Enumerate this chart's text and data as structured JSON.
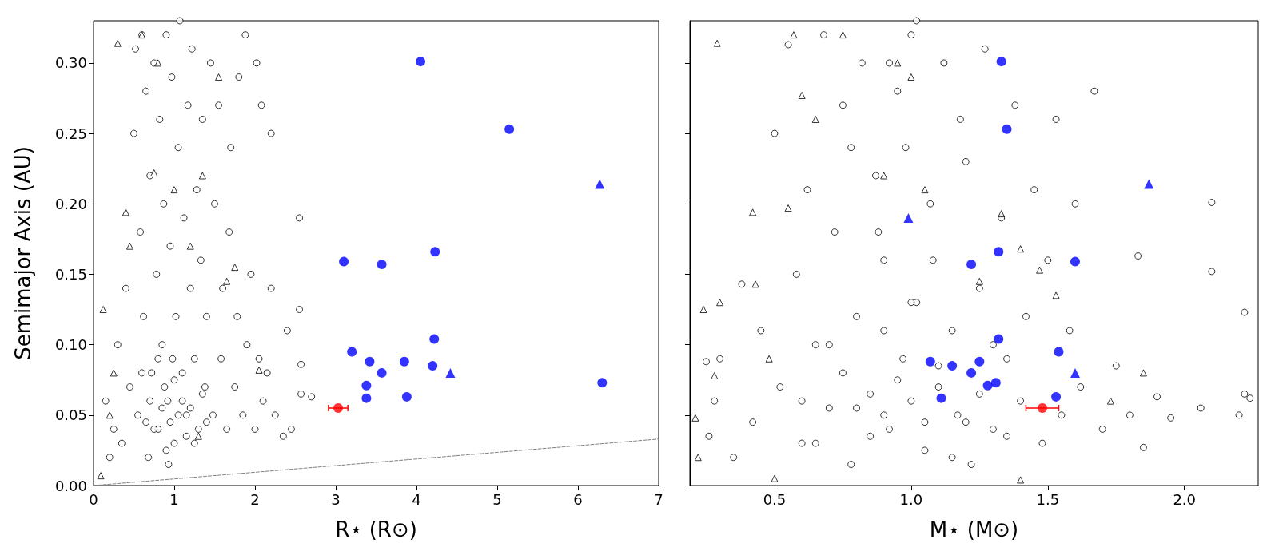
{
  "chart_data": [
    {
      "type": "scatter",
      "ylabel": "Semimajor Axis (AU)",
      "xlabel": "R⋆ (R⊙)",
      "xlim": [
        0,
        7
      ],
      "xticks": [
        0,
        1,
        2,
        3,
        4,
        5,
        6,
        7
      ],
      "ylim": [
        0,
        0.33
      ],
      "yticks": [
        {
          "value": 0,
          "label": "0.00"
        },
        0.05,
        {
          "value": 0.1,
          "label": "0.10"
        },
        0.15,
        {
          "value": 0.2,
          "label": "0.20"
        },
        0.25,
        {
          "value": 0.3,
          "label": "0.30"
        }
      ],
      "grid": false,
      "series": [
        {
          "type": "line",
          "line_style": "dashed",
          "color": "#808080",
          "x": [
            0,
            7
          ],
          "values": [
            0,
            0.033
          ]
        },
        {
          "marker": "circle",
          "color": "#000000",
          "x": [
            0.15,
            0.2,
            0.25,
            0.3,
            0.35,
            0.4,
            0.45,
            0.5,
            0.52,
            0.55,
            0.58,
            0.6,
            0.62,
            0.65,
            0.68,
            0.7,
            0.72,
            0.75,
            0.78,
            0.8,
            0.82,
            0.85,
            0.87,
            0.9,
            0.92,
            0.95,
            0.97,
            1.0,
            1.02,
            1.05,
            1.07,
            1.1,
            1.12,
            1.15,
            1.17,
            1.2,
            1.22,
            1.25,
            1.28,
            1.3,
            1.33,
            1.35,
            1.38,
            1.4,
            1.45,
            1.48,
            1.5,
            1.55,
            1.58,
            1.6,
            1.65,
            1.68,
            1.7,
            1.75,
            1.78,
            1.8,
            1.85,
            1.88,
            1.9,
            1.95,
            2.0,
            2.02,
            2.05,
            2.08,
            2.1,
            2.15,
            2.2,
            2.2,
            2.25,
            2.35,
            2.4,
            2.45,
            2.55,
            2.55,
            2.57,
            2.57,
            2.7,
            1.05,
            0.95,
            0.85,
            0.75,
            1.15,
            0.88,
            0.98,
            1.1,
            0.8,
            0.9,
            1.2,
            0.7,
            1.0,
            0.93,
            1.25,
            0.65,
            1.35,
            0.6,
            1.4
          ],
          "values": [
            0.06,
            0.02,
            0.04,
            0.1,
            0.03,
            0.14,
            0.07,
            0.25,
            0.31,
            0.05,
            0.18,
            0.32,
            0.12,
            0.28,
            0.02,
            0.22,
            0.08,
            0.3,
            0.15,
            0.04,
            0.26,
            0.1,
            0.2,
            0.32,
            0.06,
            0.17,
            0.29,
            0.03,
            0.12,
            0.24,
            0.33,
            0.08,
            0.19,
            0.05,
            0.27,
            0.14,
            0.31,
            0.09,
            0.21,
            0.04,
            0.16,
            0.26,
            0.07,
            0.12,
            0.3,
            0.05,
            0.2,
            0.27,
            0.09,
            0.14,
            0.04,
            0.18,
            0.24,
            0.07,
            0.12,
            0.29,
            0.05,
            0.32,
            0.1,
            0.15,
            0.04,
            0.3,
            0.09,
            0.27,
            0.06,
            0.08,
            0.25,
            0.14,
            0.05,
            0.035,
            0.11,
            0.04,
            0.19,
            0.125,
            0.086,
            0.065,
            0.063,
            0.05,
            0.045,
            0.055,
            0.04,
            0.035,
            0.07,
            0.09,
            0.06,
            0.09,
            0.025,
            0.055,
            0.06,
            0.075,
            0.015,
            0.03,
            0.045,
            0.065,
            0.08,
            0.045
          ]
        },
        {
          "marker": "triangle",
          "color": "#000000",
          "x": [
            0.09,
            0.12,
            0.2,
            0.3,
            0.4,
            0.45,
            0.6,
            0.75,
            1.0,
            1.2,
            1.35,
            1.55,
            1.65,
            1.75,
            1.3,
            0.25,
            2.05,
            0.8
          ],
          "values": [
            0.007,
            0.125,
            0.05,
            0.314,
            0.194,
            0.17,
            0.32,
            0.222,
            0.21,
            0.17,
            0.22,
            0.29,
            0.145,
            0.155,
            0.035,
            0.08,
            0.082,
            0.3
          ]
        },
        {
          "marker": "circle",
          "color": "#0000ff",
          "x": [
            4.05,
            5.15,
            3.1,
            3.57,
            4.23,
            3.2,
            3.42,
            3.57,
            3.85,
            4.22,
            4.2,
            3.38,
            3.38,
            3.88,
            6.3
          ],
          "values": [
            0.301,
            0.253,
            0.159,
            0.157,
            0.166,
            0.095,
            0.088,
            0.08,
            0.088,
            0.104,
            0.085,
            0.071,
            0.062,
            0.063,
            0.073
          ]
        },
        {
          "marker": "triangle",
          "color": "#0000ff",
          "x": [
            6.27,
            4.42
          ],
          "values": [
            0.214,
            0.08
          ]
        },
        {
          "marker": "circle",
          "color": "#ff0000",
          "x": [
            3.03
          ],
          "values": [
            0.055
          ],
          "xerrors": [
            0.12
          ]
        }
      ]
    },
    {
      "type": "scatter",
      "xlabel": "M⋆ (M⊙)",
      "xlim": [
        0.19,
        2.27
      ],
      "xticks": [
        0.5,
        {
          "value": 1,
          "label": "1.0"
        },
        1.5,
        {
          "value": 2,
          "label": "2.0"
        }
      ],
      "ylim": [
        0,
        0.33
      ],
      "yticks": [
        {
          "value": 0,
          "label": null
        },
        {
          "value": 0.05,
          "label": null
        },
        {
          "value": 0.1,
          "label": null
        },
        {
          "value": 0.15,
          "label": null
        },
        {
          "value": 0.2,
          "label": null
        },
        {
          "value": 0.25,
          "label": null
        },
        {
          "value": 0.3,
          "label": null
        }
      ],
      "tick_labels": "x",
      "grid": false,
      "series": [
        {
          "marker": "circle",
          "color": "#000000",
          "x": [
            0.25,
            0.26,
            0.28,
            0.3,
            0.35,
            0.38,
            0.42,
            0.45,
            0.5,
            0.52,
            0.55,
            0.58,
            0.6,
            0.62,
            0.65,
            0.68,
            0.7,
            0.72,
            0.75,
            0.78,
            0.8,
            0.82,
            0.85,
            0.87,
            0.9,
            0.92,
            0.95,
            0.97,
            1.0,
            1.02,
            1.05,
            1.07,
            1.1,
            1.12,
            1.15,
            1.17,
            1.2,
            1.22,
            1.25,
            1.27,
            1.3,
            1.33,
            1.35,
            1.38,
            1.4,
            1.42,
            1.45,
            1.48,
            1.5,
            1.53,
            1.55,
            1.58,
            1.6,
            1.62,
            1.67,
            1.7,
            1.75,
            1.8,
            1.83,
            1.85,
            1.9,
            1.95,
            2.06,
            2.1,
            2.1,
            2.2,
            2.22,
            2.22,
            2.24,
            0.9,
            1.0,
            0.95,
            1.05,
            0.85,
            1.1,
            0.8,
            1.15,
            0.75,
            1.2,
            0.7,
            1.25,
            0.65,
            1.3,
            0.6,
            1.35,
            0.9,
            1.0,
            0.88,
            1.08,
            0.98,
            1.18,
            0.78,
            0.92,
            1.02
          ],
          "values": [
            0.088,
            0.035,
            0.06,
            0.09,
            0.02,
            0.143,
            0.045,
            0.11,
            0.25,
            0.07,
            0.313,
            0.15,
            0.03,
            0.21,
            0.1,
            0.32,
            0.055,
            0.18,
            0.27,
            0.015,
            0.12,
            0.3,
            0.065,
            0.22,
            0.16,
            0.04,
            0.28,
            0.09,
            0.32,
            0.13,
            0.025,
            0.2,
            0.07,
            0.3,
            0.11,
            0.05,
            0.23,
            0.015,
            0.14,
            0.31,
            0.04,
            0.19,
            0.09,
            0.27,
            0.06,
            0.12,
            0.21,
            0.03,
            0.16,
            0.26,
            0.05,
            0.11,
            0.2,
            0.07,
            0.28,
            0.04,
            0.085,
            0.05,
            0.163,
            0.027,
            0.063,
            0.048,
            0.055,
            0.152,
            0.201,
            0.05,
            0.123,
            0.065,
            0.062,
            0.05,
            0.06,
            0.075,
            0.045,
            0.035,
            0.085,
            0.055,
            0.02,
            0.08,
            0.045,
            0.1,
            0.065,
            0.03,
            0.1,
            0.06,
            0.035,
            0.11,
            0.13,
            0.18,
            0.16,
            0.24,
            0.26,
            0.24,
            0.3,
            0.33
          ]
        },
        {
          "marker": "triangle",
          "color": "#000000",
          "x": [
            0.21,
            0.22,
            0.24,
            0.29,
            0.3,
            0.42,
            0.43,
            0.55,
            0.57,
            0.6,
            0.65,
            0.75,
            0.9,
            0.95,
            1.0,
            1.05,
            1.25,
            1.33,
            1.4,
            1.47,
            1.53,
            1.73,
            1.85,
            1.4,
            0.5,
            0.48,
            0.28
          ],
          "values": [
            0.048,
            0.02,
            0.125,
            0.314,
            0.13,
            0.194,
            0.143,
            0.197,
            0.32,
            0.277,
            0.26,
            0.32,
            0.22,
            0.3,
            0.29,
            0.21,
            0.145,
            0.193,
            0.168,
            0.153,
            0.135,
            0.06,
            0.08,
            0.004,
            0.005,
            0.09,
            0.078
          ]
        },
        {
          "marker": "circle",
          "color": "#0000ff",
          "x": [
            1.33,
            1.35,
            1.32,
            1.22,
            1.6,
            1.32,
            1.07,
            1.15,
            1.22,
            1.25,
            1.54,
            1.28,
            1.31,
            1.11,
            1.53
          ],
          "values": [
            0.301,
            0.253,
            0.166,
            0.157,
            0.159,
            0.104,
            0.088,
            0.085,
            0.08,
            0.088,
            0.095,
            0.071,
            0.073,
            0.062,
            0.063
          ]
        },
        {
          "marker": "triangle",
          "color": "#0000ff",
          "x": [
            1.87,
            1.6,
            0.99
          ],
          "values": [
            0.214,
            0.08,
            0.19
          ]
        },
        {
          "marker": "circle",
          "color": "#ff0000",
          "x": [
            1.48
          ],
          "values": [
            0.055
          ],
          "xerrors": [
            0.06
          ]
        }
      ]
    }
  ]
}
